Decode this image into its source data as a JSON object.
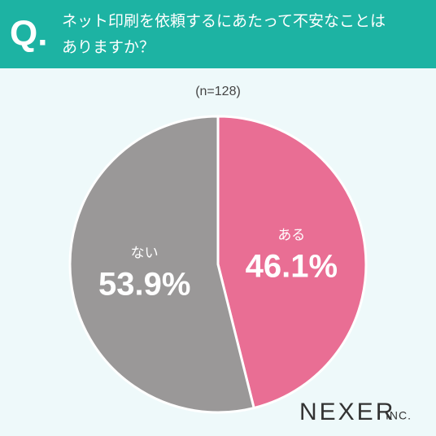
{
  "chart_data": {
    "type": "pie",
    "question_mark": "Q.",
    "title": [
      "ネット印刷を依頼するにあたって不安なことは",
      "ありますか？"
    ],
    "subtitle": "(n=128)",
    "categories": [
      "ある",
      "ない"
    ],
    "values": [
      46.1,
      53.9
    ],
    "value_labels": [
      "46.1%",
      "53.9%"
    ],
    "colors": [
      "#e96e94",
      "#9a9898"
    ],
    "logo": "NEXER",
    "logo_suffix": "INC."
  }
}
